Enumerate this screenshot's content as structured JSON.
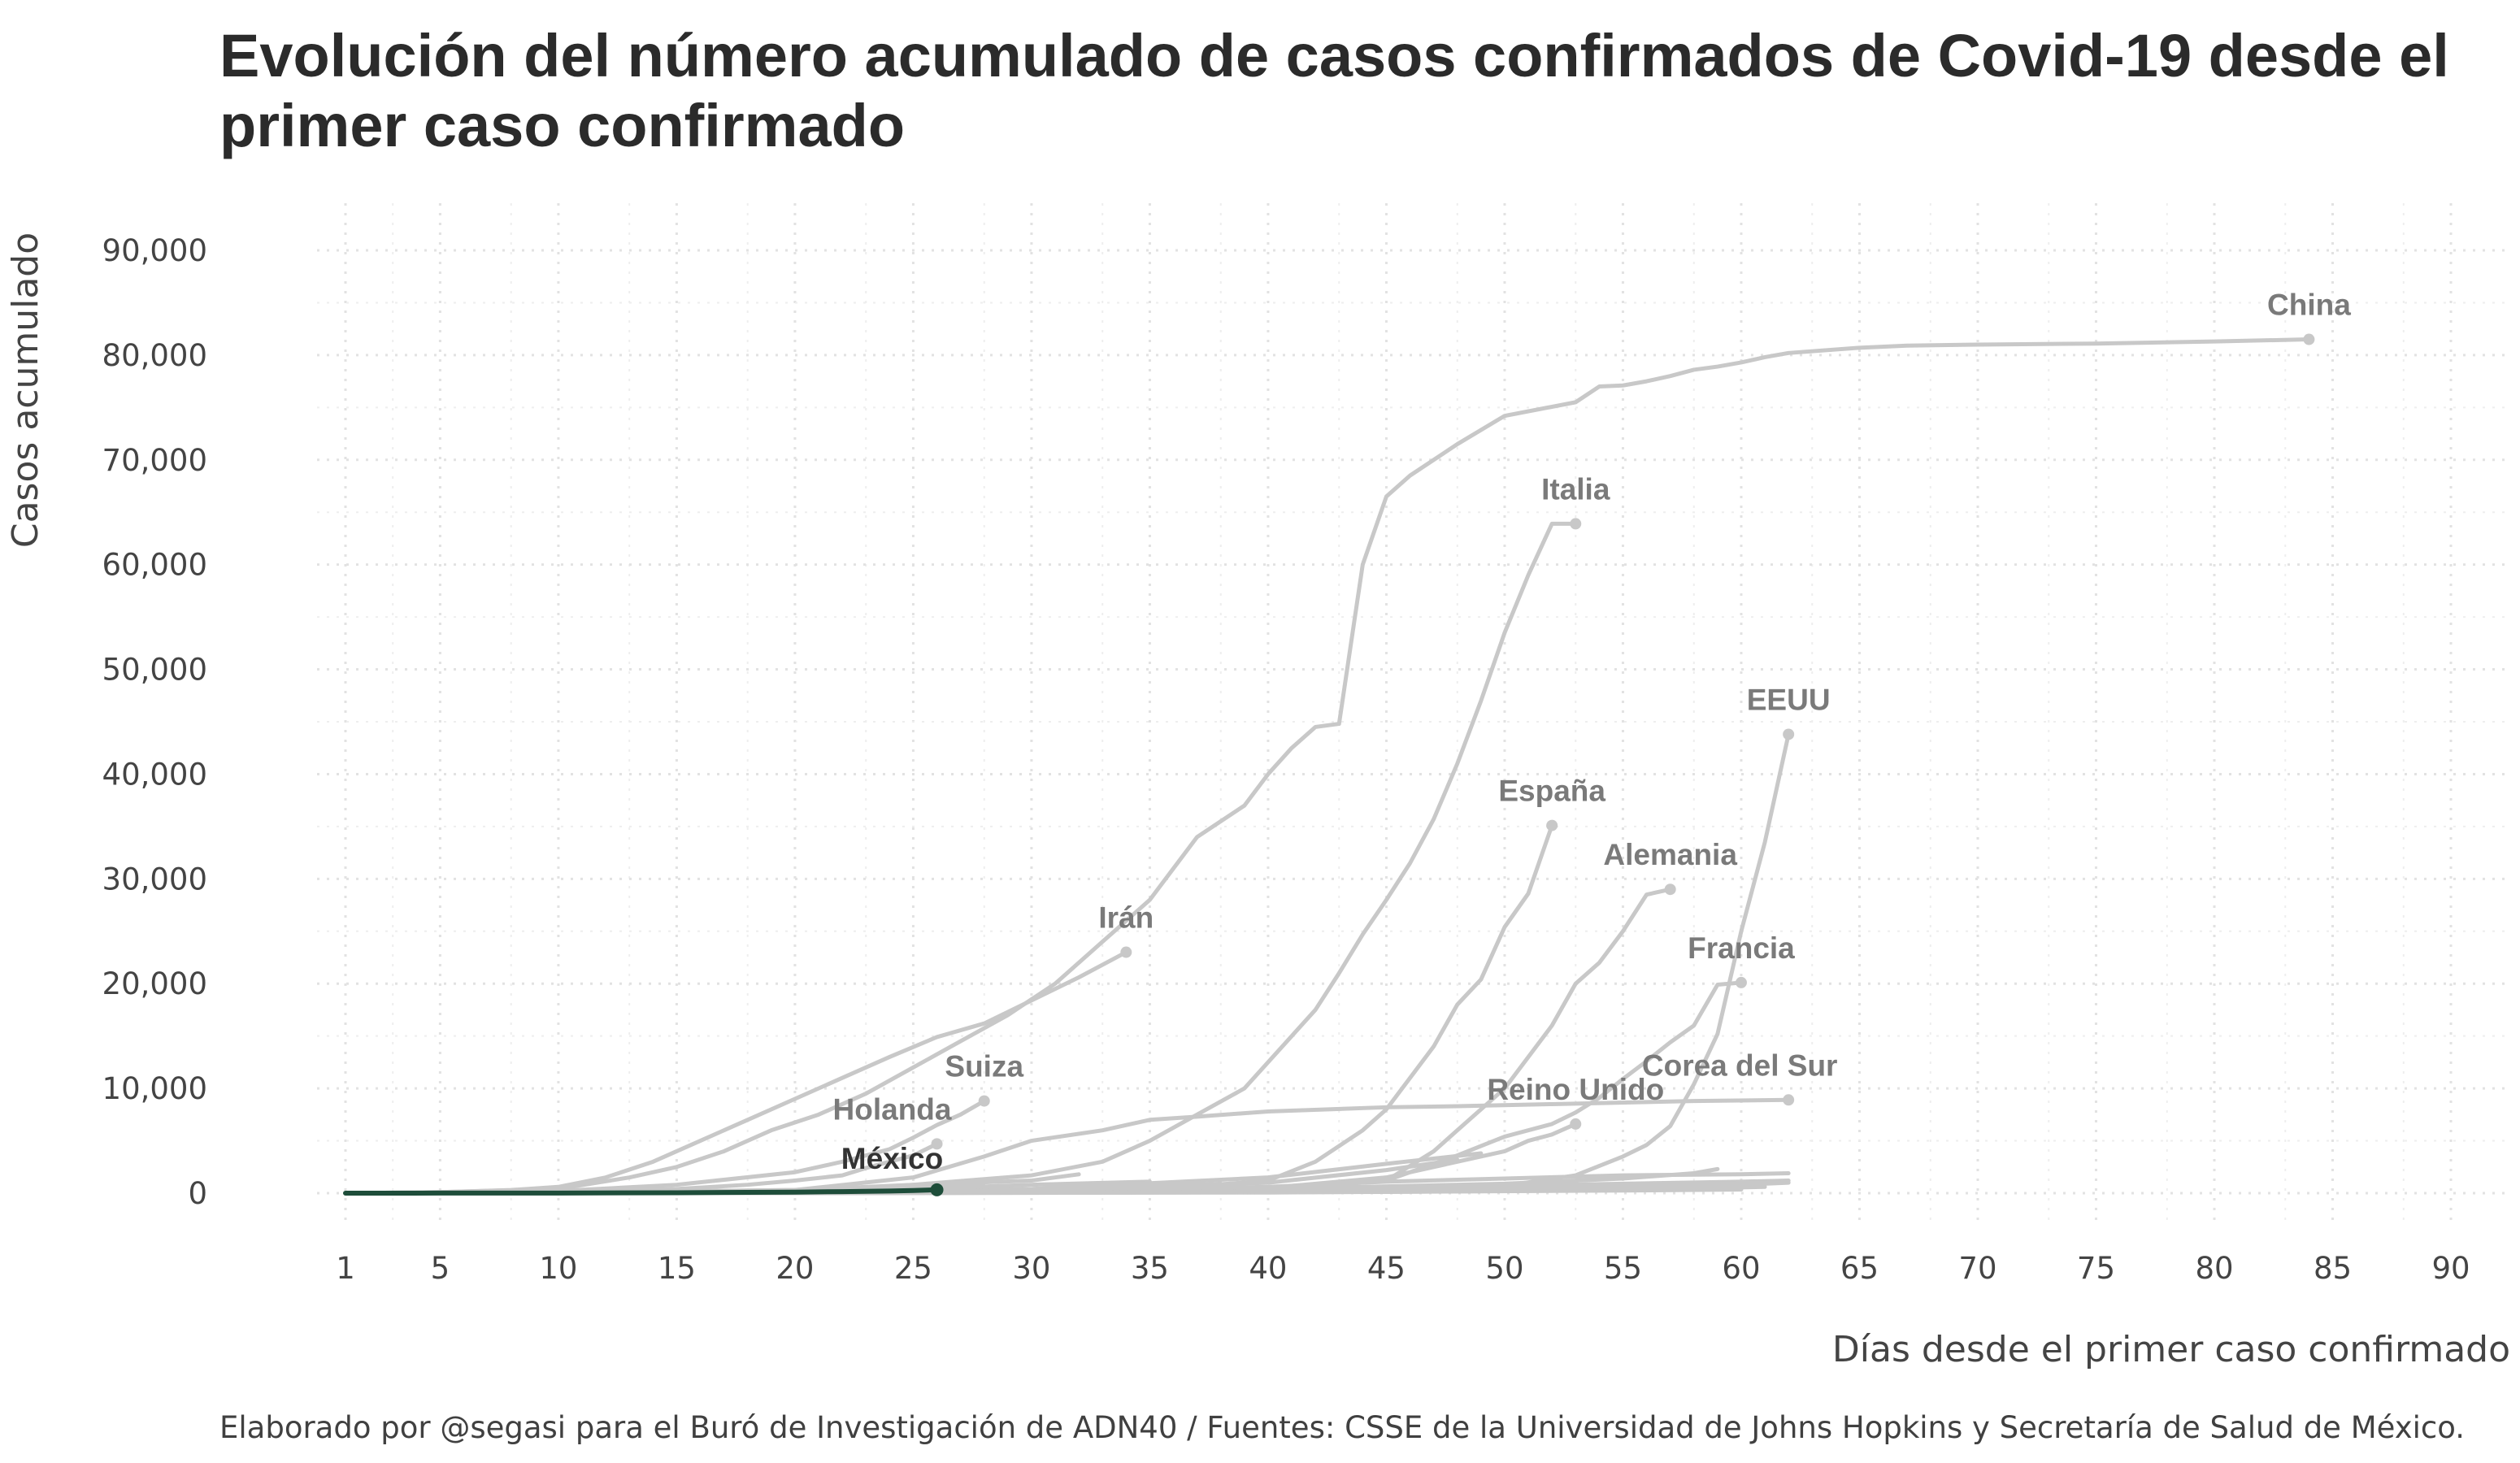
{
  "chart_data": {
    "type": "line",
    "title": "Evolución del número acumulado de casos confirmados de Covid-19 desde el primer caso confirmado",
    "xlabel": "Días desde el primer caso confirmado",
    "ylabel": "Casos acumulado",
    "caption": "Elaborado por @segasi para el Buró de Investigación de ADN40 / Fuentes: CSSE de la Universidad de Johns Hopkins y Secretaría de Salud de México.",
    "xlim": [
      1,
      91
    ],
    "ylim": [
      -2000,
      95000
    ],
    "x_ticks": [
      1,
      5,
      10,
      15,
      20,
      25,
      30,
      35,
      40,
      45,
      50,
      55,
      60,
      65,
      70,
      75,
      80,
      85,
      90
    ],
    "y_ticks": [
      0,
      10000,
      20000,
      30000,
      40000,
      50000,
      60000,
      70000,
      80000,
      90000
    ],
    "y_tick_labels": [
      "0",
      "10,000",
      "20,000",
      "30,000",
      "40,000",
      "50,000",
      "60,000",
      "70,000",
      "80,000",
      "90,000"
    ],
    "grid": true,
    "highlight_color": "#1e4d3a",
    "background_color": "#c8c8c8",
    "series": [
      {
        "name": "China",
        "labeled": true,
        "x": [
          1,
          5,
          10,
          13,
          15,
          17,
          19,
          21,
          23,
          25,
          27,
          29,
          31,
          33,
          35,
          37,
          39,
          40,
          41,
          42,
          43,
          44,
          45,
          46,
          48,
          50,
          53,
          54,
          55,
          56,
          57,
          58,
          59,
          60,
          61,
          62,
          65,
          67,
          70,
          75,
          80,
          84
        ],
        "y": [
          0,
          100,
          400,
          1500,
          2500,
          4000,
          6000,
          7500,
          9500,
          12000,
          14500,
          17000,
          20000,
          24000,
          28000,
          34000,
          37000,
          40000,
          42500,
          44500,
          44800,
          60000,
          66500,
          68500,
          71500,
          74200,
          75500,
          77000,
          77100,
          77500,
          78000,
          78600,
          78900,
          79300,
          79800,
          80200,
          80700,
          80900,
          81000,
          81100,
          81300,
          81500
        ]
      },
      {
        "name": "Italia",
        "labeled": true,
        "x": [
          1,
          10,
          20,
          25,
          30,
          33,
          35,
          37,
          39,
          41,
          42,
          43,
          44,
          45,
          46,
          47,
          48,
          49,
          50,
          51,
          52,
          53
        ],
        "y": [
          0,
          5,
          100,
          800,
          1700,
          3000,
          5000,
          7500,
          10000,
          15000,
          17500,
          21000,
          24700,
          28000,
          31500,
          35700,
          41000,
          47000,
          53500,
          59000,
          63900,
          63900
        ]
      },
      {
        "name": "EEUU",
        "labeled": true,
        "x": [
          1,
          20,
          30,
          40,
          45,
          50,
          53,
          55,
          56,
          57,
          58,
          59,
          60,
          61,
          62
        ],
        "y": [
          0,
          15,
          60,
          100,
          200,
          700,
          1700,
          3500,
          4600,
          6400,
          10400,
          15200,
          25000,
          33500,
          43800
        ]
      },
      {
        "name": "España",
        "labeled": true,
        "x": [
          1,
          20,
          30,
          35,
          40,
          42,
          44,
          45,
          46,
          47,
          48,
          49,
          50,
          51,
          52
        ],
        "y": [
          0,
          2,
          100,
          300,
          1200,
          3000,
          6000,
          8000,
          11000,
          14000,
          18000,
          20400,
          25400,
          28600,
          35100
        ]
      },
      {
        "name": "Alemania",
        "labeled": true,
        "x": [
          1,
          20,
          30,
          40,
          45,
          47,
          48,
          49,
          50,
          51,
          52,
          53,
          54,
          55,
          56,
          57
        ],
        "y": [
          0,
          16,
          50,
          300,
          1200,
          4000,
          6000,
          8000,
          10000,
          13000,
          16000,
          20000,
          22000,
          25000,
          28500,
          29000
        ]
      },
      {
        "name": "Francia",
        "labeled": true,
        "x": [
          1,
          20,
          30,
          40,
          45,
          48,
          50,
          52,
          53,
          54,
          55,
          56,
          57,
          58,
          59,
          60
        ],
        "y": [
          0,
          12,
          50,
          300,
          1200,
          3600,
          5400,
          6600,
          7700,
          9100,
          10900,
          12600,
          14400,
          16000,
          19900,
          20100
        ]
      },
      {
        "name": "Irán",
        "labeled": true,
        "x": [
          1,
          5,
          8,
          10,
          12,
          14,
          16,
          18,
          20,
          22,
          24,
          26,
          28,
          30,
          32,
          34
        ],
        "y": [
          0,
          100,
          300,
          600,
          1500,
          3000,
          5000,
          7000,
          9000,
          11000,
          13000,
          14900,
          16200,
          18400,
          20600,
          23000
        ]
      },
      {
        "name": "Corea del Sur",
        "labeled": true,
        "x": [
          1,
          10,
          20,
          25,
          28,
          30,
          33,
          35,
          37,
          40,
          45,
          48,
          52,
          58,
          62
        ],
        "y": [
          0,
          50,
          300,
          1500,
          3500,
          5000,
          6000,
          7000,
          7300,
          7800,
          8200,
          8300,
          8500,
          8800,
          8900
        ]
      },
      {
        "name": "Suiza",
        "labeled": true,
        "x": [
          1,
          10,
          15,
          20,
          22,
          24,
          25,
          26,
          27,
          28
        ],
        "y": [
          0,
          200,
          800,
          2000,
          3000,
          4200,
          5300,
          6500,
          7500,
          8800
        ]
      },
      {
        "name": "Reino Unido",
        "labeled": true,
        "x": [
          1,
          20,
          30,
          40,
          45,
          48,
          50,
          51,
          52,
          53
        ],
        "y": [
          0,
          10,
          100,
          500,
          1500,
          3000,
          4000,
          5000,
          5600,
          6600
        ]
      },
      {
        "name": "Holanda",
        "labeled": true,
        "x": [
          1,
          10,
          15,
          18,
          20,
          22,
          23,
          24,
          25,
          26
        ],
        "y": [
          0,
          100,
          400,
          800,
          1200,
          1700,
          2400,
          3000,
          3600,
          4700
        ]
      },
      {
        "name": "México",
        "labeled": true,
        "highlight": true,
        "x": [
          1,
          5,
          10,
          15,
          20,
          22,
          24,
          25,
          26
        ],
        "y": [
          0,
          5,
          10,
          40,
          100,
          150,
          200,
          250,
          320
        ]
      },
      {
        "labeled": false,
        "x": [
          1,
          10,
          20,
          25,
          30,
          32
        ],
        "y": [
          0,
          50,
          300,
          800,
          1200,
          1800
        ]
      },
      {
        "labeled": false,
        "x": [
          1,
          20,
          30,
          40,
          45,
          49
        ],
        "y": [
          0,
          100,
          400,
          1500,
          2800,
          3800
        ]
      },
      {
        "labeled": false,
        "x": [
          1,
          20,
          30,
          40,
          45,
          48
        ],
        "y": [
          0,
          50,
          300,
          1000,
          2200,
          3200
        ]
      },
      {
        "labeled": false,
        "x": [
          1,
          20,
          30,
          40,
          45,
          50,
          55,
          60,
          62
        ],
        "y": [
          0,
          50,
          200,
          600,
          1100,
          1400,
          1700,
          1800,
          1900
        ]
      },
      {
        "labeled": false,
        "x": [
          1,
          20,
          30,
          40,
          50,
          55,
          58,
          59
        ],
        "y": [
          0,
          50,
          150,
          400,
          900,
          1400,
          1900,
          2300
        ]
      },
      {
        "labeled": false,
        "x": [
          1,
          20,
          30,
          40,
          50,
          55,
          60,
          62
        ],
        "y": [
          0,
          20,
          100,
          300,
          700,
          900,
          1100,
          1200
        ]
      },
      {
        "labeled": false,
        "x": [
          1,
          20,
          30,
          40,
          50,
          55,
          60,
          62
        ],
        "y": [
          0,
          20,
          80,
          200,
          400,
          600,
          800,
          1000
        ]
      },
      {
        "labeled": false,
        "x": [
          1,
          20,
          30,
          40,
          50,
          55,
          60,
          61
        ],
        "y": [
          0,
          10,
          50,
          150,
          300,
          450,
          550,
          600
        ]
      },
      {
        "labeled": false,
        "x": [
          1,
          20,
          30,
          40,
          45,
          50,
          53
        ],
        "y": [
          0,
          10,
          40,
          150,
          300,
          600,
          1000
        ]
      },
      {
        "labeled": false,
        "x": [
          1,
          25,
          30,
          35,
          38
        ],
        "y": [
          0,
          100,
          300,
          600,
          900
        ]
      },
      {
        "labeled": false,
        "x": [
          1,
          15,
          25,
          30,
          35
        ],
        "y": [
          0,
          100,
          400,
          800,
          1100
        ]
      },
      {
        "labeled": false,
        "x": [
          1,
          20,
          25,
          28
        ],
        "y": [
          0,
          200,
          500,
          1000
        ]
      },
      {
        "labeled": false,
        "x": [
          1,
          20,
          40,
          50,
          58
        ],
        "y": [
          0,
          10,
          60,
          200,
          400
        ]
      },
      {
        "labeled": false,
        "x": [
          1,
          30,
          45,
          55,
          60
        ],
        "y": [
          0,
          30,
          120,
          250,
          350
        ]
      }
    ]
  }
}
